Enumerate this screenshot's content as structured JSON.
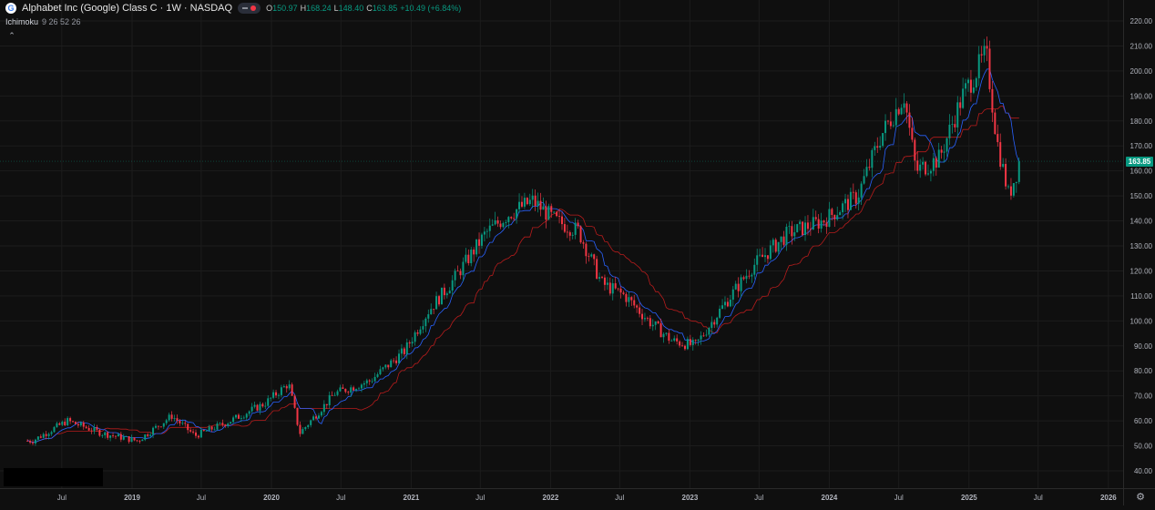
{
  "legend": {
    "logo_letter": "G",
    "title": "Alphabet Inc (Google) Class C · 1W · NASDAQ",
    "o_key": "O",
    "o_val": "150.97",
    "h_key": "H",
    "h_val": "168.24",
    "l_key": "L",
    "l_val": "148.40",
    "c_key": "C",
    "c_val": "163.85",
    "change": "+10.49 (+6.84%)"
  },
  "indicator": {
    "name": "Ichimoku",
    "params": "9 26 52 26"
  },
  "colors": {
    "up": "#089981",
    "down": "#f23645",
    "tenkan": "#2962ff",
    "kijun": "#b71c1c",
    "background": "#0f0f0f",
    "grid": "#1c1c1c"
  },
  "icons": {
    "collapse": "chevron-up-icon",
    "settings": "gear-icon",
    "logo": "google-logo-icon"
  },
  "chart_data": {
    "type": "candlestick",
    "x_axis": {
      "ticks": [
        "Jul",
        "2019",
        "Jul",
        "2020",
        "Jul",
        "2021",
        "Jul",
        "2022",
        "Jul",
        "2023",
        "Jul",
        "2024",
        "Jul",
        "2025",
        "Jul",
        "2026"
      ]
    },
    "y_axis": {
      "ticks": [
        "220.00",
        "210.00",
        "200.00",
        "190.00",
        "180.00",
        "170.00",
        "160.00",
        "150.00",
        "140.00",
        "130.00",
        "120.00",
        "110.00",
        "100.00",
        "90.00",
        "80.00",
        "70.00",
        "60.00",
        "50.00",
        "40.00"
      ],
      "ylim": [
        35,
        224
      ]
    },
    "last_price": "163.85",
    "start": "2018-04-02",
    "series_price_approx": [
      [
        "2018-04",
        52
      ],
      [
        "2018-07",
        60
      ],
      [
        "2018-10",
        55
      ],
      [
        "2019-01",
        52
      ],
      [
        "2019-04",
        62
      ],
      [
        "2019-06",
        54
      ],
      [
        "2019-09",
        60
      ],
      [
        "2019-12",
        67
      ],
      [
        "2020-02",
        75
      ],
      [
        "2020-03",
        55
      ],
      [
        "2020-06",
        71
      ],
      [
        "2020-09",
        76
      ],
      [
        "2020-12",
        88
      ],
      [
        "2021-02",
        104
      ],
      [
        "2021-04",
        115
      ],
      [
        "2021-07",
        135
      ],
      [
        "2021-09",
        143
      ],
      [
        "2021-11",
        148
      ],
      [
        "2022-01",
        140
      ],
      [
        "2022-03",
        136
      ],
      [
        "2022-05",
        115
      ],
      [
        "2022-07",
        110
      ],
      [
        "2022-09",
        100
      ],
      [
        "2022-11",
        92
      ],
      [
        "2023-01",
        90
      ],
      [
        "2023-03",
        103
      ],
      [
        "2023-06",
        122
      ],
      [
        "2023-09",
        135
      ],
      [
        "2023-12",
        140
      ],
      [
        "2024-03",
        150
      ],
      [
        "2024-05",
        174
      ],
      [
        "2024-07",
        190
      ],
      [
        "2024-08",
        160
      ],
      [
        "2024-10",
        165
      ],
      [
        "2024-12",
        190
      ],
      [
        "2025-02",
        207
      ],
      [
        "2025-03",
        172
      ],
      [
        "2025-04",
        150
      ],
      [
        "2025-05",
        163.85
      ]
    ]
  }
}
